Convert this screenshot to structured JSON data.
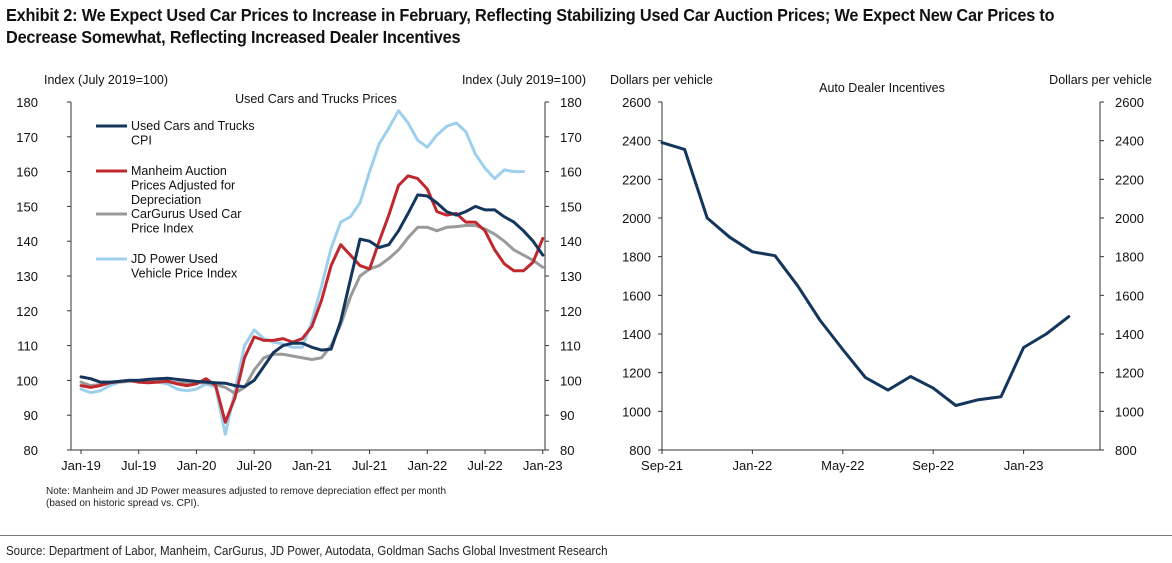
{
  "title": {
    "line1": "Exhibit 2: We Expect Used Car Prices to Increase in February, Reflecting Stabilizing Used Car Auction Prices; We Expect New Car Prices to",
    "line2": "Decrease Somewhat, Reflecting Increased Dealer Incentives"
  },
  "note": {
    "line1": "Note: Manheim and JD Power measures adjusted to remove depreciation effect per month",
    "line2": "(based on historic spread vs. CPI)."
  },
  "source": "Source: Department of Labor, Manheim, CarGurus, JD Power, Autodata, Goldman Sachs Global Investment Research",
  "colors": {
    "navy": "#14365d",
    "red": "#c0282e",
    "gray": "#9a9a9a",
    "lightblue": "#9ed0ee"
  },
  "chart_data": [
    {
      "type": "line",
      "title": "Used Cars and Trucks Prices",
      "ylabel_left": "Index (July 2019=100)",
      "ylabel_right": "Index (July 2019=100)",
      "ylim": [
        80,
        180
      ],
      "yticks": [
        80,
        90,
        100,
        110,
        120,
        130,
        140,
        150,
        160,
        170,
        180
      ],
      "x_start": "2019-01",
      "xtick_labels": [
        "Jan-19",
        "Jul-19",
        "Jan-20",
        "Jul-20",
        "Jan-21",
        "Jul-21",
        "Jan-22",
        "Jul-22",
        "Jan-23"
      ],
      "grid": false,
      "legend": "top-left",
      "series": [
        {
          "name": "Used Cars and Trucks CPI",
          "legend_lines": [
            "Used Cars and Trucks",
            "CPI"
          ],
          "color": "#14365d",
          "values": [
            101,
            100.5,
            99.5,
            99.5,
            99.7,
            100,
            100,
            100.3,
            100.5,
            100.6,
            100.3,
            100,
            99.7,
            99.5,
            99.3,
            99.2,
            98.5,
            98.2,
            100,
            104,
            108,
            110,
            110.7,
            110.7,
            109.5,
            108.7,
            109,
            117,
            129,
            140.6,
            140,
            138.2,
            139,
            143,
            148,
            153.3,
            153,
            151,
            148.5,
            147.5,
            148.5,
            150,
            149,
            149,
            147,
            145.5,
            143,
            140,
            136
          ]
        },
        {
          "name": "Manheim Auction Prices Adjusted for Depreciation",
          "legend_lines": [
            "Manheim Auction",
            "Prices Adjusted for",
            "Depreciation"
          ],
          "color": "#c0282e",
          "values": [
            98.5,
            98,
            98.5,
            99.3,
            99.7,
            100,
            99.5,
            99.3,
            99.5,
            99.8,
            99,
            98.5,
            99,
            100.5,
            98.5,
            88,
            95,
            106.5,
            112.5,
            111.5,
            111.5,
            112,
            111,
            112,
            115.5,
            123,
            133,
            139,
            136,
            133,
            132,
            140,
            147.5,
            156,
            158.8,
            158,
            155,
            148.5,
            147.5,
            148,
            145.5,
            145.5,
            143,
            137.5,
            133.5,
            131.5,
            131.5,
            134,
            140.8
          ]
        },
        {
          "name": "CarGurus Used Car Price Index",
          "legend_lines": [
            "CarGurus Used Car",
            "Price Index"
          ],
          "color": "#9a9a9a",
          "values": [
            99.5,
            98.5,
            98.8,
            99.3,
            99.5,
            99.7,
            100,
            100,
            99.8,
            99.5,
            99.3,
            99.3,
            99.3,
            99.3,
            98.8,
            98,
            96.3,
            98,
            103,
            106.5,
            107.5,
            107.5,
            107,
            106.5,
            106,
            106.5,
            110,
            116,
            124,
            130,
            132,
            133,
            135,
            137.5,
            141,
            144,
            144,
            143,
            144,
            144.2,
            144.5,
            144.5,
            143.5,
            142,
            140,
            137.5,
            136,
            134.5,
            132.5
          ]
        },
        {
          "name": "JD Power Used Vehicle Price Index",
          "legend_lines": [
            "JD Power Used",
            "Vehicle Price Index"
          ],
          "color": "#9ed0ee",
          "values": [
            97.5,
            96.5,
            97,
            98.5,
            99.5,
            100,
            100,
            100,
            99.5,
            99,
            97.5,
            97,
            97.5,
            99,
            98,
            84.5,
            97,
            110,
            114.5,
            112,
            111,
            110.5,
            109.5,
            109.5,
            117,
            127,
            138,
            145.5,
            147,
            151,
            160,
            168,
            172.5,
            177.5,
            174,
            169,
            167,
            170.5,
            173,
            174,
            171.5,
            165,
            161,
            158,
            160.5,
            160,
            160
          ]
        }
      ]
    },
    {
      "type": "line",
      "title": "Auto Dealer Incentives",
      "ylabel_left": "Dollars per vehicle",
      "ylabel_right": "Dollars per vehicle",
      "ylim": [
        800,
        2600
      ],
      "yticks": [
        800,
        1000,
        1200,
        1400,
        1600,
        1800,
        2000,
        2200,
        2400,
        2600
      ],
      "x_start": "2021-09",
      "xtick_labels": [
        "Sep-21",
        "Jan-22",
        "May-22",
        "Sep-22",
        "Jan-23"
      ],
      "grid": false,
      "series": [
        {
          "name": "",
          "color": "#14365d",
          "values": [
            2390,
            2355,
            2000,
            1900,
            1825,
            1805,
            1650,
            1470,
            1320,
            1175,
            1110,
            1180,
            1120,
            1030,
            1060,
            1075,
            1330,
            1400,
            1490
          ]
        }
      ]
    }
  ]
}
